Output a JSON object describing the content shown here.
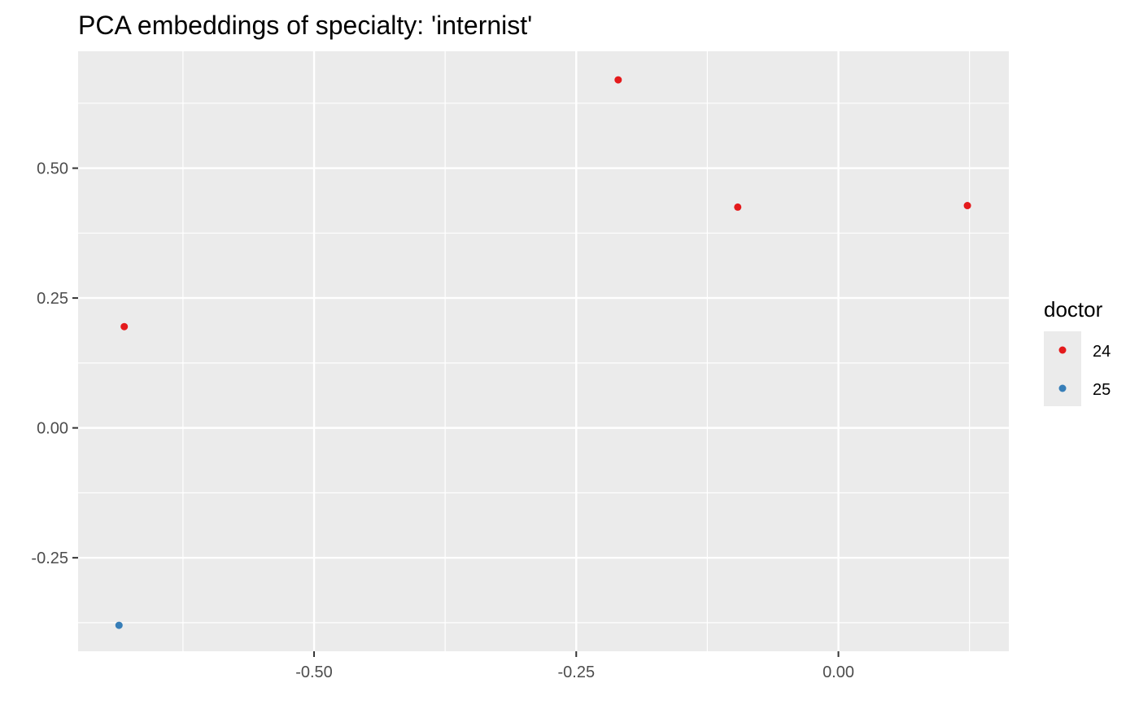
{
  "chart_data": {
    "type": "scatter",
    "title": "PCA embeddings of specialty: 'internist'",
    "xlabel": "",
    "ylabel": "",
    "xlim": [
      -0.725,
      0.1625
    ],
    "ylim": [
      -0.43,
      0.725
    ],
    "x_major_ticks": [
      -0.5,
      -0.25,
      0.0
    ],
    "x_minor_ticks": [
      -0.625,
      -0.375,
      -0.125,
      0.125
    ],
    "x_tick_labels": [
      "-0.50",
      "-0.25",
      "0.00"
    ],
    "y_major_ticks": [
      -0.25,
      0.0,
      0.25,
      0.5
    ],
    "y_minor_ticks": [
      -0.375,
      -0.125,
      0.125,
      0.375,
      0.625
    ],
    "y_tick_labels": [
      "-0.25",
      "0.00",
      "0.25",
      "0.50"
    ],
    "grid": true,
    "legend": {
      "title": "doctor",
      "position": "right"
    },
    "series": [
      {
        "name": "24",
        "color": "#e41a1c",
        "points": [
          {
            "x": -0.21,
            "y": 0.67
          },
          {
            "x": -0.096,
            "y": 0.425
          },
          {
            "x": 0.123,
            "y": 0.428
          },
          {
            "x": -0.681,
            "y": 0.195
          }
        ]
      },
      {
        "name": "25",
        "color": "#377eb8",
        "points": [
          {
            "x": -0.686,
            "y": -0.38
          }
        ]
      }
    ]
  }
}
